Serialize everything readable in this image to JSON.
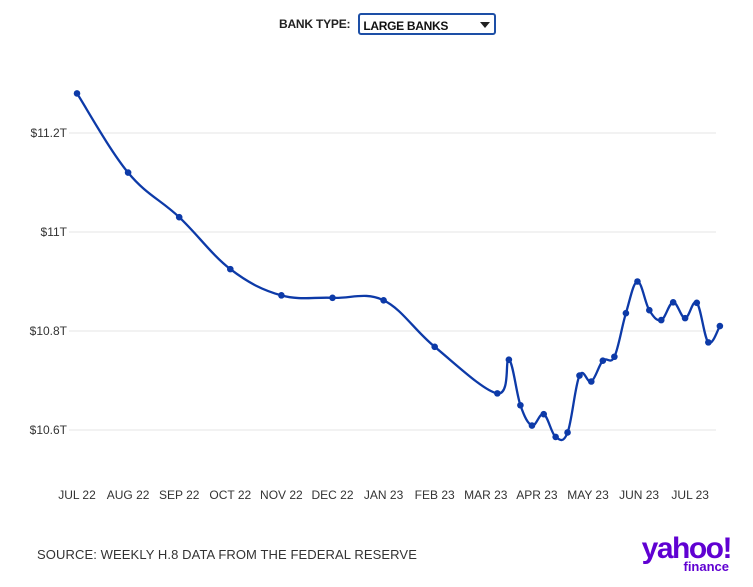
{
  "filter": {
    "label": "BANK TYPE:",
    "selected": "LARGE BANKS"
  },
  "source": "SOURCE: WEEKLY H.8 DATA FROM THE FEDERAL RESERVE",
  "logo": {
    "main": "yahoo!",
    "sub": "finance"
  },
  "colors": {
    "line": "#0d3aa8",
    "grid": "#e6e6e6",
    "logo": "#6001d2",
    "select_border": "#1d4fa6"
  },
  "chart_data": {
    "type": "line",
    "title": "",
    "xlabel": "",
    "ylabel": "",
    "x_ticks": [
      "JUL 22",
      "AUG 22",
      "SEP 22",
      "OCT 22",
      "NOV 22",
      "DEC 22",
      "JAN 23",
      "FEB 23",
      "MAR 23",
      "APR 23",
      "MAY 23",
      "JUN 23",
      "JUL 23"
    ],
    "y_ticks": [
      {
        "value": 10.6,
        "label": "$10.6T"
      },
      {
        "value": 10.8,
        "label": "$10.8T"
      },
      {
        "value": 11.0,
        "label": "$11T"
      },
      {
        "value": 11.2,
        "label": "$11.2T"
      }
    ],
    "ylim": [
      10.5,
      11.3
    ],
    "grid": true,
    "series": [
      {
        "values": [
          {
            "x": "2022-07",
            "y": 11.28
          },
          {
            "x": "2022-08",
            "y": 11.12
          },
          {
            "x": "2022-09",
            "y": 11.03
          },
          {
            "x": "2022-10",
            "y": 10.925
          },
          {
            "x": "2022-11",
            "y": 10.872
          },
          {
            "x": "2022-12",
            "y": 10.867
          },
          {
            "x": "2023-01",
            "y": 10.862
          },
          {
            "x": "2023-02",
            "y": 10.768
          },
          {
            "x": "2023-03-08",
            "y": 10.674
          },
          {
            "x": "2023-03-15",
            "y": 10.742
          },
          {
            "x": "2023-03-22",
            "y": 10.65
          },
          {
            "x": "2023-03-29",
            "y": 10.609
          },
          {
            "x": "2023-04-05",
            "y": 10.632
          },
          {
            "x": "2023-04-12",
            "y": 10.586
          },
          {
            "x": "2023-04-19",
            "y": 10.595
          },
          {
            "x": "2023-04-26",
            "y": 10.71
          },
          {
            "x": "2023-05-03",
            "y": 10.698
          },
          {
            "x": "2023-05-10",
            "y": 10.74
          },
          {
            "x": "2023-05-17",
            "y": 10.748
          },
          {
            "x": "2023-05-24",
            "y": 10.836
          },
          {
            "x": "2023-05-31",
            "y": 10.9
          },
          {
            "x": "2023-06-07",
            "y": 10.842
          },
          {
            "x": "2023-06-14",
            "y": 10.822
          },
          {
            "x": "2023-06-21",
            "y": 10.858
          },
          {
            "x": "2023-06-28",
            "y": 10.826
          },
          {
            "x": "2023-07-05",
            "y": 10.857
          },
          {
            "x": "2023-07-12",
            "y": 10.777
          },
          {
            "x": "2023-07-19",
            "y": 10.81
          }
        ]
      }
    ]
  }
}
